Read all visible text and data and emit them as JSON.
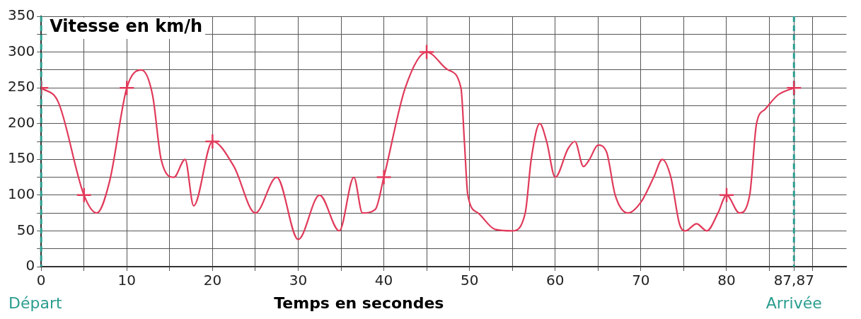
{
  "chart_data": {
    "type": "line",
    "ylabel": "Vitesse en km/h",
    "xlabel": "Temps en secondes",
    "xlim": [
      0,
      94
    ],
    "ylim": [
      0,
      350
    ],
    "xticks": [
      0,
      {
        "value": 5,
        "label": null
      },
      10,
      {
        "value": 15,
        "label": null
      },
      20,
      {
        "value": 25,
        "label": null
      },
      30,
      {
        "value": 35,
        "label": null
      },
      40,
      {
        "value": 45,
        "label": null
      },
      50,
      {
        "value": 55,
        "label": null
      },
      60,
      {
        "value": 65,
        "label": null
      },
      70,
      {
        "value": 75,
        "label": null
      },
      80,
      {
        "value": 85,
        "label": null
      },
      {
        "value": 87.87,
        "label": "87,87"
      },
      {
        "value": 90,
        "label": null
      }
    ],
    "yticks": [
      0,
      {
        "value": 25,
        "label": null
      },
      50,
      {
        "value": 75,
        "label": null
      },
      100,
      {
        "value": 125,
        "label": null
      },
      150,
      {
        "value": 175,
        "label": null
      },
      200,
      {
        "value": 225,
        "label": null
      },
      250,
      {
        "value": 275,
        "label": null
      },
      300,
      {
        "value": 325,
        "label": null
      },
      350
    ],
    "grid": true,
    "series": [
      {
        "type": "line",
        "color": "#e03a5a",
        "marker": "none",
        "line_style": "solid",
        "x": [
          0,
          2,
          5,
          6.5,
          8,
          10,
          11.7,
          13,
          14,
          15.5,
          16.8,
          17.8,
          20,
          22.5,
          25,
          27.5,
          30,
          32.5,
          34.8,
          36.5,
          37.5,
          39,
          40,
          42.5,
          45,
          47.5,
          49,
          49.4,
          49.8,
          51,
          53,
          55,
          56.5,
          57.2,
          58.2,
          59,
          60,
          61.5,
          62.3,
          63.3,
          64,
          65,
          66,
          67,
          68.5,
          70,
          71.5,
          72.5,
          73.5,
          74.5,
          75.2,
          76.5,
          77.7,
          79,
          80,
          81.5,
          82.7,
          83.5,
          84.5,
          86,
          87.87
        ],
        "values": [
          250,
          230,
          100,
          75,
          120,
          250,
          275,
          240,
          150,
          125,
          150,
          85,
          175,
          140,
          75,
          125,
          38,
          100,
          50,
          125,
          75,
          80,
          125,
          250,
          300,
          275,
          250,
          175,
          100,
          75,
          52,
          50,
          75,
          150,
          200,
          175,
          125,
          165,
          175,
          140,
          150,
          170,
          160,
          100,
          75,
          90,
          125,
          150,
          125,
          60,
          50,
          60,
          50,
          75,
          100,
          75,
          100,
          200,
          220,
          240,
          250
        ]
      },
      {
        "type": "scatter",
        "color": "#e03a5a",
        "marker": "cross",
        "x": [
          0,
          5,
          10,
          20,
          40,
          45,
          80,
          87.87
        ],
        "values": [
          250,
          100,
          250,
          175,
          125,
          300,
          100,
          250
        ]
      }
    ],
    "ref_lines": [
      {
        "axis": "x",
        "value": 0,
        "label": "Départ",
        "color": "#2a9d8f",
        "line_style": "dashed"
      },
      {
        "axis": "x",
        "value": 87.87,
        "label": "Arrivée",
        "color": "#2a9d8f",
        "line_style": "dashed"
      }
    ]
  }
}
